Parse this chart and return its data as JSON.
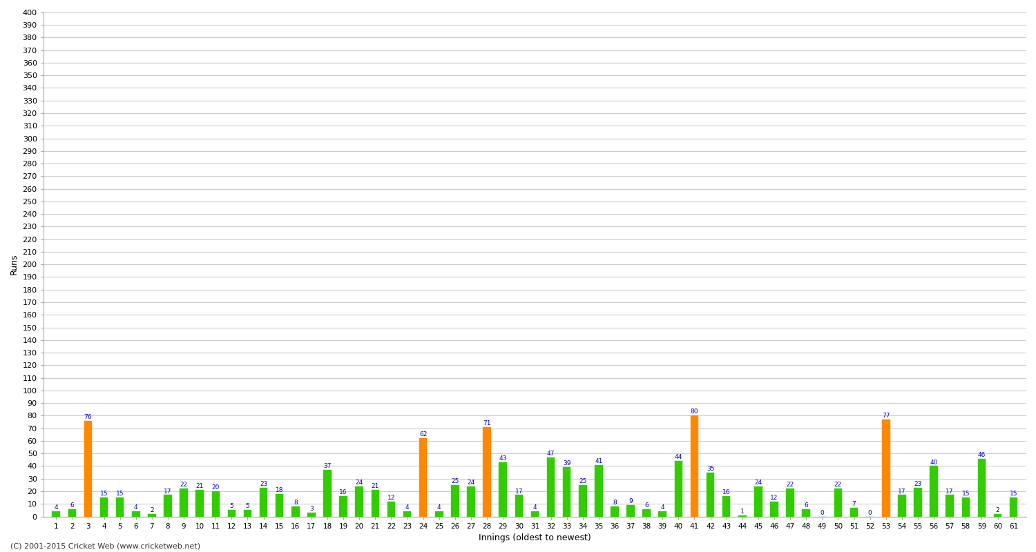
{
  "innings": [
    1,
    2,
    3,
    4,
    5,
    6,
    7,
    8,
    9,
    10,
    11,
    12,
    13,
    14,
    15,
    16,
    17,
    18,
    19,
    20,
    21,
    22,
    23,
    24,
    25,
    26,
    27,
    28,
    29,
    30,
    31,
    32,
    33,
    34,
    35,
    36,
    37,
    38,
    39,
    40,
    41,
    42,
    43,
    44,
    45,
    46,
    47,
    48,
    49,
    50,
    51,
    52,
    53,
    54,
    55,
    56,
    57,
    58,
    59,
    60,
    61
  ],
  "values": [
    4,
    6,
    76,
    15,
    15,
    4,
    2,
    17,
    22,
    21,
    20,
    5,
    5,
    23,
    18,
    8,
    3,
    37,
    16,
    24,
    21,
    12,
    4,
    62,
    4,
    25,
    24,
    71,
    43,
    17,
    4,
    47,
    39,
    25,
    41,
    8,
    9,
    6,
    4,
    44,
    80,
    35,
    16,
    1,
    24,
    12,
    22,
    6,
    0,
    22,
    7,
    0,
    77,
    17,
    23,
    40,
    17,
    15,
    46,
    2,
    15
  ],
  "colors": [
    "#33cc00",
    "#33cc00",
    "#ff8800",
    "#33cc00",
    "#33cc00",
    "#33cc00",
    "#33cc00",
    "#33cc00",
    "#33cc00",
    "#33cc00",
    "#33cc00",
    "#33cc00",
    "#33cc00",
    "#33cc00",
    "#33cc00",
    "#33cc00",
    "#33cc00",
    "#33cc00",
    "#33cc00",
    "#33cc00",
    "#33cc00",
    "#33cc00",
    "#33cc00",
    "#ff8800",
    "#33cc00",
    "#33cc00",
    "#33cc00",
    "#ff8800",
    "#33cc00",
    "#33cc00",
    "#33cc00",
    "#33cc00",
    "#33cc00",
    "#33cc00",
    "#33cc00",
    "#33cc00",
    "#33cc00",
    "#33cc00",
    "#33cc00",
    "#33cc00",
    "#ff8800",
    "#33cc00",
    "#33cc00",
    "#33cc00",
    "#33cc00",
    "#33cc00",
    "#33cc00",
    "#33cc00",
    "#33cc00",
    "#33cc00",
    "#33cc00",
    "#33cc00",
    "#ff8800",
    "#33cc00",
    "#33cc00",
    "#33cc00",
    "#33cc00",
    "#33cc00",
    "#33cc00",
    "#33cc00",
    "#33cc00"
  ],
  "ylabel": "Runs",
  "xlabel": "Innings (oldest to newest)",
  "ylim": [
    0,
    400
  ],
  "yticks": [
    0,
    10,
    20,
    30,
    40,
    50,
    60,
    70,
    80,
    90,
    100,
    110,
    120,
    130,
    140,
    150,
    160,
    170,
    180,
    190,
    200,
    210,
    220,
    230,
    240,
    250,
    260,
    270,
    280,
    290,
    300,
    310,
    320,
    330,
    340,
    350,
    360,
    370,
    380,
    390,
    400
  ],
  "bg_color": "#ffffff",
  "grid_color": "#cccccc",
  "label_color": "#0000cc",
  "footer": "(C) 2001-2015 Cricket Web (www.cricketweb.net)"
}
